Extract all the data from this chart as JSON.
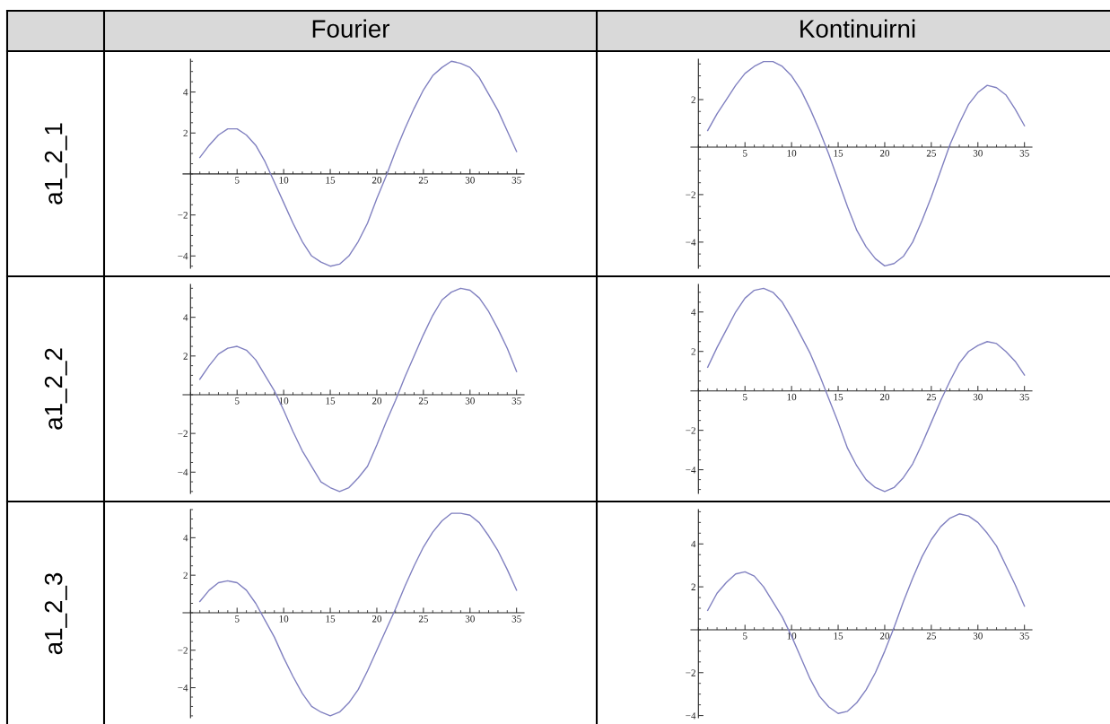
{
  "chart_data": [
    {
      "type": "line",
      "title": "Fourier",
      "ylabel": "a1_2_1",
      "x": [
        1,
        2,
        3,
        4,
        5,
        6,
        7,
        8,
        9,
        10,
        11,
        12,
        13,
        14,
        15,
        16,
        17,
        18,
        19,
        20,
        21,
        22,
        23,
        24,
        25,
        26,
        27,
        28,
        29,
        30,
        31,
        32,
        33,
        34,
        35
      ],
      "values": [
        0.8,
        1.4,
        1.9,
        2.2,
        2.2,
        1.9,
        1.4,
        0.6,
        -0.4,
        -1.4,
        -2.4,
        -3.3,
        -4.0,
        -4.3,
        -4.5,
        -4.4,
        -4.0,
        -3.3,
        -2.4,
        -1.2,
        -0.1,
        1.1,
        2.2,
        3.2,
        4.1,
        4.8,
        5.2,
        5.5,
        5.4,
        5.2,
        4.7,
        3.9,
        3.1,
        2.1,
        1.1
      ],
      "color": "#8080c0",
      "xlim": [
        -0.8,
        35.8
      ],
      "ylim": [
        -4.6,
        5.6
      ],
      "xticks": [
        5,
        10,
        15,
        20,
        25,
        30,
        35
      ],
      "yticks": [
        -4,
        -2,
        2,
        4
      ]
    },
    {
      "type": "line",
      "title": "Kontinuirni",
      "x": [
        1,
        2,
        3,
        4,
        5,
        6,
        7,
        8,
        9,
        10,
        11,
        12,
        13,
        14,
        15,
        16,
        17,
        18,
        19,
        20,
        21,
        22,
        23,
        24,
        25,
        26,
        27,
        28,
        29,
        30,
        31,
        32,
        33,
        34,
        35
      ],
      "values": [
        0.7,
        1.4,
        2.0,
        2.6,
        3.1,
        3.4,
        3.6,
        3.6,
        3.4,
        3.0,
        2.4,
        1.6,
        0.7,
        -0.3,
        -1.4,
        -2.5,
        -3.5,
        -4.2,
        -4.7,
        -5.0,
        -4.9,
        -4.6,
        -4.0,
        -3.1,
        -2.1,
        -1.0,
        0.1,
        1.0,
        1.8,
        2.3,
        2.6,
        2.5,
        2.2,
        1.6,
        0.9
      ],
      "color": "#8080c0",
      "xlim": [
        -0.8,
        35.8
      ],
      "ylim": [
        -5.1,
        3.7
      ],
      "xticks": [
        5,
        10,
        15,
        20,
        25,
        30,
        35
      ],
      "yticks": [
        -4,
        -2,
        2
      ]
    },
    {
      "type": "line",
      "ylabel": "a1_2_2",
      "x": [
        1,
        2,
        3,
        4,
        5,
        6,
        7,
        8,
        9,
        10,
        11,
        12,
        13,
        14,
        15,
        16,
        17,
        18,
        19,
        20,
        21,
        22,
        23,
        24,
        25,
        26,
        27,
        28,
        29,
        30,
        31,
        32,
        33,
        34,
        35
      ],
      "values": [
        0.8,
        1.5,
        2.1,
        2.4,
        2.5,
        2.3,
        1.8,
        1.0,
        0.2,
        -0.8,
        -1.9,
        -2.9,
        -3.7,
        -4.5,
        -4.8,
        -5.0,
        -4.8,
        -4.3,
        -3.7,
        -2.6,
        -1.4,
        -0.3,
        0.9,
        2.0,
        3.1,
        4.1,
        4.9,
        5.3,
        5.5,
        5.4,
        5.0,
        4.3,
        3.4,
        2.4,
        1.2
      ],
      "color": "#8080c0",
      "xlim": [
        -0.8,
        35.8
      ],
      "ylim": [
        -5.1,
        5.7
      ],
      "xticks": [
        5,
        10,
        15,
        20,
        25,
        30,
        35
      ],
      "yticks": [
        -4,
        -2,
        2,
        4
      ]
    },
    {
      "type": "line",
      "x": [
        1,
        2,
        3,
        4,
        5,
        6,
        7,
        8,
        9,
        10,
        11,
        12,
        13,
        14,
        15,
        16,
        17,
        18,
        19,
        20,
        21,
        22,
        23,
        24,
        25,
        26,
        27,
        28,
        29,
        30,
        31,
        32,
        33,
        34,
        35
      ],
      "values": [
        1.2,
        2.2,
        3.1,
        4.0,
        4.7,
        5.1,
        5.2,
        5.0,
        4.5,
        3.7,
        2.8,
        1.9,
        0.8,
        -0.4,
        -1.6,
        -2.9,
        -3.8,
        -4.5,
        -4.9,
        -5.1,
        -4.9,
        -4.4,
        -3.7,
        -2.7,
        -1.6,
        -0.5,
        0.5,
        1.4,
        2.0,
        2.3,
        2.5,
        2.4,
        2.0,
        1.5,
        0.8
      ],
      "color": "#8080c0",
      "xlim": [
        -0.8,
        35.8
      ],
      "ylim": [
        -5.2,
        5.4
      ],
      "xticks": [
        5,
        10,
        15,
        20,
        25,
        30,
        35
      ],
      "yticks": [
        -4,
        -2,
        2,
        4
      ]
    },
    {
      "type": "line",
      "ylabel": "a1_2_3",
      "x": [
        1,
        2,
        3,
        4,
        5,
        6,
        7,
        8,
        9,
        10,
        11,
        12,
        13,
        14,
        15,
        16,
        17,
        18,
        19,
        20,
        21,
        22,
        23,
        24,
        25,
        26,
        27,
        28,
        29,
        30,
        31,
        32,
        33,
        34,
        35
      ],
      "values": [
        0.6,
        1.2,
        1.6,
        1.7,
        1.6,
        1.2,
        0.5,
        -0.4,
        -1.3,
        -2.4,
        -3.4,
        -4.3,
        -5.0,
        -5.3,
        -5.5,
        -5.3,
        -4.8,
        -4.1,
        -3.1,
        -2.0,
        -0.9,
        0.2,
        1.4,
        2.5,
        3.5,
        4.3,
        4.9,
        5.3,
        5.3,
        5.2,
        4.8,
        4.1,
        3.3,
        2.3,
        1.2
      ],
      "color": "#8080c0",
      "xlim": [
        -0.8,
        35.8
      ],
      "ylim": [
        -5.6,
        5.5
      ],
      "xticks": [
        5,
        10,
        15,
        20,
        25,
        30,
        35
      ],
      "yticks": [
        -4,
        -2,
        2,
        4
      ]
    },
    {
      "type": "line",
      "x": [
        1,
        2,
        3,
        4,
        5,
        6,
        7,
        8,
        9,
        10,
        11,
        12,
        13,
        14,
        15,
        16,
        17,
        18,
        19,
        20,
        21,
        22,
        23,
        24,
        25,
        26,
        27,
        28,
        29,
        30,
        31,
        32,
        33,
        34,
        35
      ],
      "values": [
        0.9,
        1.7,
        2.2,
        2.6,
        2.7,
        2.5,
        2.0,
        1.3,
        0.6,
        -0.3,
        -1.3,
        -2.3,
        -3.1,
        -3.6,
        -3.9,
        -3.8,
        -3.4,
        -2.8,
        -2.0,
        -1.0,
        0.1,
        1.3,
        2.4,
        3.4,
        4.2,
        4.8,
        5.2,
        5.4,
        5.3,
        5.0,
        4.5,
        3.9,
        3.0,
        2.1,
        1.1
      ],
      "color": "#8080c0",
      "xlim": [
        -0.8,
        35.8
      ],
      "ylim": [
        -4.1,
        5.6
      ],
      "xticks": [
        5,
        10,
        15,
        20,
        25,
        30,
        35
      ],
      "yticks": [
        -4,
        -2,
        2,
        4
      ]
    }
  ]
}
